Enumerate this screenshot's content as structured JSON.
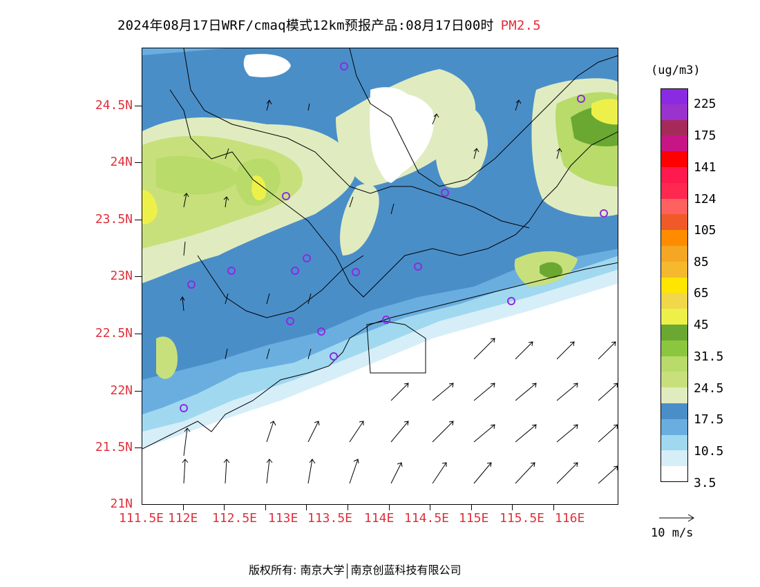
{
  "title": {
    "main": "2024年08月17日WRF/cmaq模式12km预报产品:08月17日00时",
    "pollutant": "PM2.5"
  },
  "axes": {
    "lat_labels": [
      "24.5N",
      "24N",
      "23.5N",
      "23N",
      "22.5N",
      "22N",
      "21.5N",
      "21N"
    ],
    "lon_labels": [
      "111.5E",
      "112E",
      "112.5E",
      "113E",
      "113.5E",
      "114E",
      "114.5E",
      "115E",
      "115.5E",
      "116E"
    ]
  },
  "colorbar": {
    "unit": "(ug/m3)",
    "labels": [
      "225",
      "175",
      "141",
      "124",
      "105",
      "85",
      "65",
      "45",
      "31.5",
      "24.5",
      "17.5",
      "10.5",
      "3.5"
    ],
    "colors": [
      "#8a2be2",
      "#9a32cd",
      "#a52a5a",
      "#c71585",
      "#ff0000",
      "#ff1a4d",
      "#ff2850",
      "#ff6060",
      "#f05a28",
      "#ff8c00",
      "#f5a623",
      "#f5b92e",
      "#ffe600",
      "#f0d84a",
      "#eef04a",
      "#6aa832",
      "#8cc63f",
      "#b8db6a",
      "#c8e07c",
      "#e0ecc0",
      "#4a8ec8",
      "#6aaee0",
      "#a0d8f0",
      "#d6eef8",
      "#ffffff"
    ]
  },
  "wind_reference": {
    "label": "10 m/s"
  },
  "footer": {
    "left": "版权所有: 南京大学",
    "right": "南京创蓝科技有限公司"
  }
}
